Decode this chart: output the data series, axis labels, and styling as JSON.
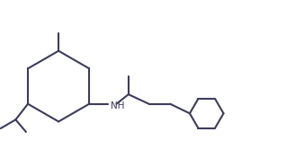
{
  "background_color": "#ffffff",
  "bond_color": "#3c3c5a",
  "lw": 1.5,
  "figsize": [
    3.18,
    1.86
  ],
  "dpi": 100,
  "xlim": [
    0.0,
    10.5
  ],
  "ylim": [
    0.3,
    6.2
  ],
  "nh_text": "NH",
  "nh_fontsize": 7.5
}
